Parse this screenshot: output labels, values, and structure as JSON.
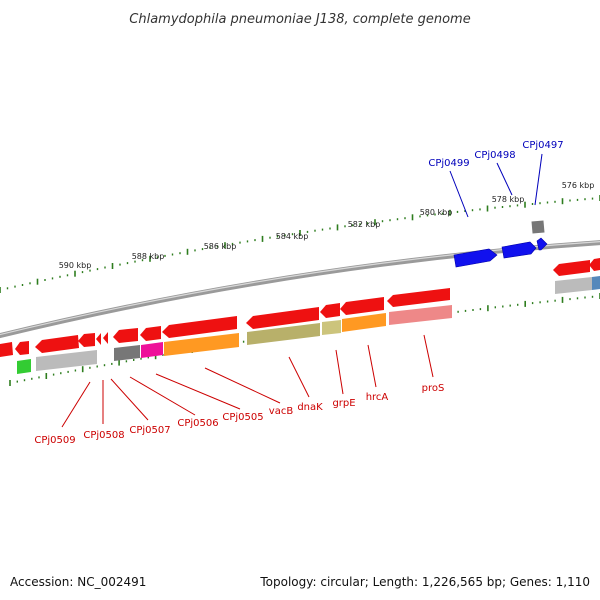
{
  "title": "Chlamydophila pneumoniae J138, complete genome",
  "footer": {
    "accession": "Accession: NC_002491",
    "topology": "Topology: circular; Length: 1,226,565 bp; Genes: 1,110"
  },
  "colors": {
    "backbone": "#8a8a8a",
    "tick": "#2e7d1e",
    "label_red": "#cc0000",
    "label_blue": "#0000bb",
    "red": "#ee1111",
    "blue": "#1111ee",
    "orange": "#ff9922",
    "olive": "#b8b06a",
    "gray": "#bbbbbb",
    "dark_gray": "#777777",
    "magenta": "#ee1199",
    "green": "#33cc33",
    "pink": "#ee8888",
    "steel_blue": "#5588bb"
  },
  "axis": {
    "unit": "kbp",
    "labels": [
      "576 kbp",
      "578 kbp",
      "580 kbp",
      "582 kbp",
      "584 kbp",
      "586 kbp",
      "588 kbp",
      "590 kbp"
    ]
  },
  "gene_labels": {
    "top": [
      "CPj0499",
      "CPj0498",
      "CPj0497"
    ],
    "bottom": [
      "CPj0509",
      "CPj0508",
      "CPj0507",
      "CPj0506",
      "CPj0505",
      "vacB",
      "dnaK",
      "grpE",
      "hrcA",
      "proS"
    ]
  }
}
